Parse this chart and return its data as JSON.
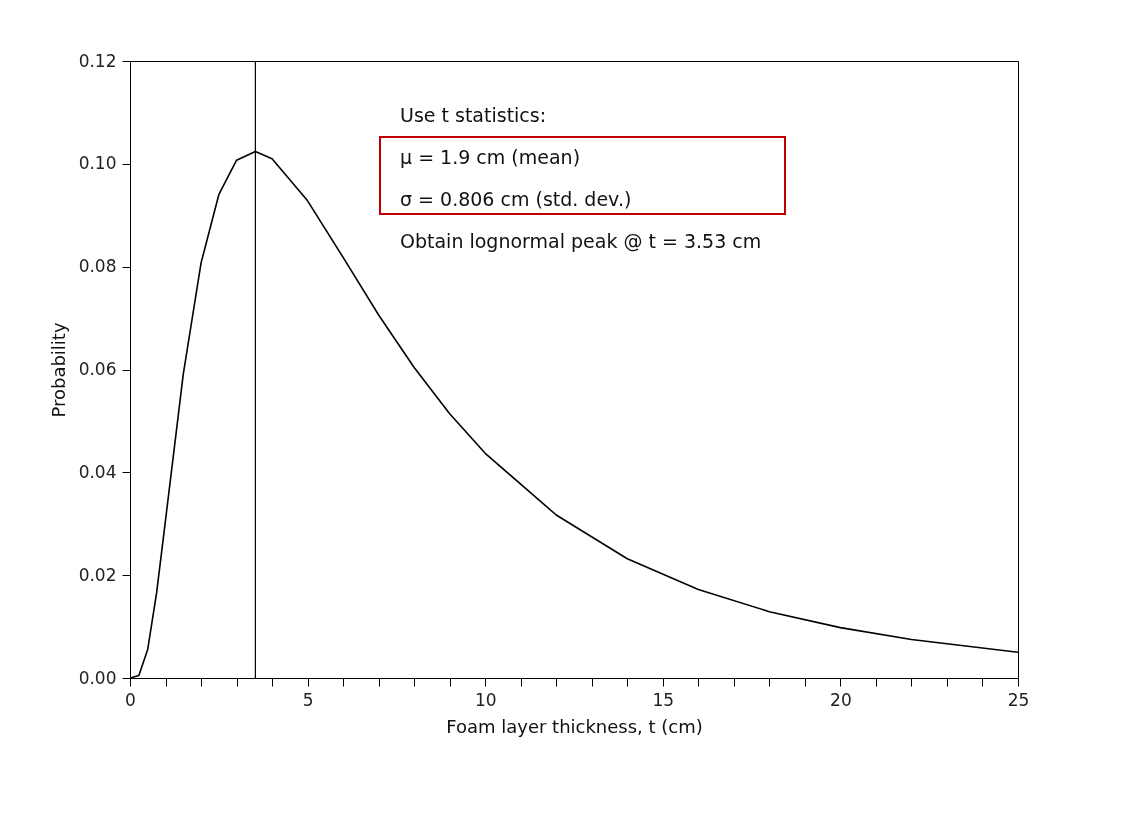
{
  "chart_data": {
    "type": "line",
    "xlabel": "Foam layer thickness, t (cm)",
    "ylabel": "Probability",
    "x": [
      0,
      0.25,
      0.5,
      0.75,
      1,
      1.5,
      2,
      2.5,
      3,
      3.53,
      4,
      5,
      6,
      7,
      8,
      9,
      10,
      12,
      14,
      16,
      18,
      20,
      22,
      25
    ],
    "series": [
      {
        "color": "#000000",
        "values": [
          0,
          0.0005,
          0.0056,
          0.0166,
          0.0307,
          0.0591,
          0.0807,
          0.094,
          0.1007,
          0.1024,
          0.101,
          0.0928,
          0.0818,
          0.0706,
          0.0604,
          0.0514,
          0.0437,
          0.0317,
          0.0232,
          0.0172,
          0.0129,
          0.0098,
          0.0075,
          0.005
        ]
      }
    ],
    "xlim": [
      0,
      25
    ],
    "ylim": [
      0,
      0.12
    ],
    "xticks": [
      0,
      {
        "value": 1,
        "label": null
      },
      {
        "value": 2,
        "label": null
      },
      {
        "value": 3,
        "label": null
      },
      {
        "value": 4,
        "label": null
      },
      5,
      {
        "value": 6,
        "label": null
      },
      {
        "value": 7,
        "label": null
      },
      {
        "value": 8,
        "label": null
      },
      {
        "value": 9,
        "label": null
      },
      10,
      {
        "value": 11,
        "label": null
      },
      {
        "value": 12,
        "label": null
      },
      {
        "value": 13,
        "label": null
      },
      {
        "value": 14,
        "label": null
      },
      15,
      {
        "value": 16,
        "label": null
      },
      {
        "value": 17,
        "label": null
      },
      {
        "value": 18,
        "label": null
      },
      {
        "value": 19,
        "label": null
      },
      20,
      {
        "value": 21,
        "label": null
      },
      {
        "value": 22,
        "label": null
      },
      {
        "value": 23,
        "label": null
      },
      {
        "value": 24,
        "label": null
      },
      25
    ],
    "yticks": [
      {
        "value": 0,
        "label": "0.00"
      },
      {
        "value": 0.02,
        "label": "0.02"
      },
      {
        "value": 0.04,
        "label": "0.04"
      },
      {
        "value": 0.06,
        "label": "0.06"
      },
      {
        "value": 0.08,
        "label": "0.08"
      },
      {
        "value": 0.1,
        "label": "0.10"
      },
      {
        "value": 0.12,
        "label": "0.12"
      }
    ],
    "ref_lines": [
      {
        "axis": "x",
        "value": 3.53,
        "color": "#000000"
      }
    ],
    "annotations": [
      "Use t statistics:",
      "μ = 1.9 cm (mean)",
      "σ = 0.806 cm (std. dev.)",
      "Obtain lognormal peak @ t = 3.53 cm"
    ],
    "grid": false,
    "legend": false,
    "marker": "none",
    "line_style": "solid"
  }
}
